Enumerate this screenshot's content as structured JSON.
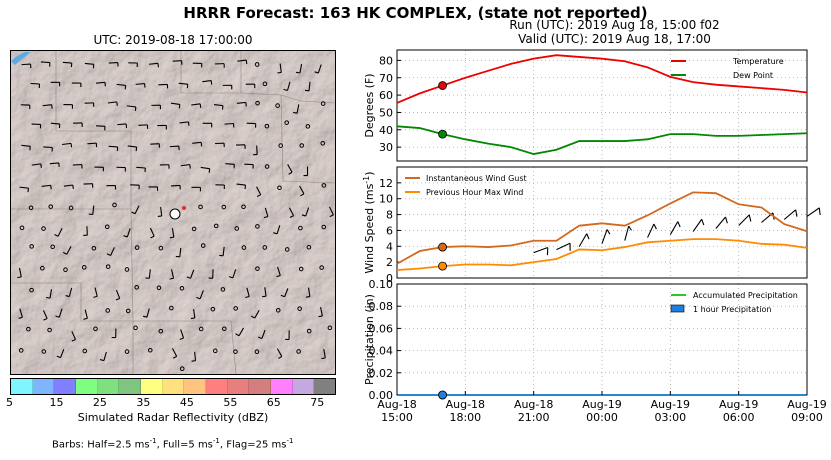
{
  "suptitle": "HRRR Forecast: 163 HK COMPLEX, (state not reported)",
  "map_panel": {
    "title": "UTC: 2019-08-18 17:00:00",
    "colorbar": {
      "label": "Simulated Radar Reflectivity (dBZ)",
      "ticks": [
        "5",
        "15",
        "25",
        "35",
        "45",
        "55",
        "65",
        "75"
      ],
      "colors": [
        "#7ff5ff",
        "#7fb5ff",
        "#7f7fff",
        "#7fff7f",
        "#7fe07f",
        "#7fc47f",
        "#ffff7f",
        "#ffe07f",
        "#ffc47f",
        "#ff7f7f",
        "#e87f7f",
        "#d47f7f",
        "#ff7fff",
        "#c4a8e0",
        "#808080"
      ]
    },
    "barbs_note_prefix": "Barbs: Half=2.5 ms",
    "barbs_note_mid1": ", Full=5 ms",
    "barbs_note_mid2": ", Flag=25 ms",
    "barbs_note_sup": "-1"
  },
  "run_title_line1": "Run (UTC): 2019 Aug 18, 15:00 f02",
  "run_title_line2": "Valid (UTC): 2019 Aug 18, 17:00",
  "chart_data": [
    {
      "type": "line",
      "panel": "temperature",
      "ylabel": "Degrees (F)",
      "ylim": [
        22,
        86
      ],
      "yticks": [
        30,
        40,
        50,
        60,
        70,
        80
      ],
      "x": [
        "2019-08-18 15:00",
        "2019-08-18 16:00",
        "2019-08-18 17:00",
        "2019-08-18 18:00",
        "2019-08-18 19:00",
        "2019-08-18 20:00",
        "2019-08-18 21:00",
        "2019-08-18 22:00",
        "2019-08-18 23:00",
        "2019-08-19 00:00",
        "2019-08-19 01:00",
        "2019-08-19 02:00",
        "2019-08-19 03:00",
        "2019-08-19 04:00",
        "2019-08-19 05:00",
        "2019-08-19 06:00",
        "2019-08-19 07:00",
        "2019-08-19 08:00",
        "2019-08-19 09:00"
      ],
      "series": [
        {
          "name": "Temperature",
          "color": "#ee0000",
          "values": [
            55.5,
            61,
            65.5,
            70,
            74,
            78,
            81,
            83,
            82,
            81,
            79.5,
            76,
            70.5,
            67.5,
            66,
            65,
            64,
            63,
            61.5
          ]
        },
        {
          "name": "Dew Point",
          "color": "#008800",
          "values": [
            42,
            41,
            37.5,
            34.5,
            32,
            30,
            26,
            28.5,
            33.5,
            33.5,
            33.5,
            34.5,
            37.5,
            37.5,
            36.5,
            36.5,
            37,
            37.5,
            38
          ]
        }
      ],
      "marker_x": "2019-08-18 17:00",
      "legend": "top-right",
      "grid": true
    },
    {
      "type": "line",
      "panel": "wind",
      "ylabel": "Wind Speed (ms",
      "ylabel_sup": "-1",
      "ylabel_close": ")",
      "ylim": [
        0,
        14
      ],
      "yticks": [
        0,
        2,
        4,
        6,
        8,
        10,
        12
      ],
      "x": [
        "2019-08-18 15:00",
        "2019-08-18 16:00",
        "2019-08-18 17:00",
        "2019-08-18 18:00",
        "2019-08-18 19:00",
        "2019-08-18 20:00",
        "2019-08-18 21:00",
        "2019-08-18 22:00",
        "2019-08-18 23:00",
        "2019-08-19 00:00",
        "2019-08-19 01:00",
        "2019-08-19 02:00",
        "2019-08-19 03:00",
        "2019-08-19 04:00",
        "2019-08-19 05:00",
        "2019-08-19 06:00",
        "2019-08-19 07:00",
        "2019-08-19 08:00",
        "2019-08-19 09:00"
      ],
      "series": [
        {
          "name": "Instantaneous Wind Gust",
          "color": "#d2691e",
          "values": [
            1.8,
            3.4,
            3.9,
            4.0,
            3.9,
            4.1,
            4.7,
            4.7,
            6.6,
            6.9,
            6.6,
            7.9,
            9.4,
            10.8,
            10.7,
            9.3,
            8.9,
            6.8,
            5.9
          ]
        },
        {
          "name": "Previous Hour Max Wind",
          "color": "#ff8c00",
          "values": [
            1.0,
            1.2,
            1.5,
            1.7,
            1.7,
            1.6,
            2.0,
            2.4,
            3.6,
            3.5,
            3.9,
            4.5,
            4.7,
            4.9,
            4.9,
            4.7,
            4.3,
            4.2,
            3.8
          ]
        }
      ],
      "barb_dirs_deg": [
        0,
        0,
        0,
        0,
        0,
        0,
        250,
        245,
        210,
        200,
        195,
        205,
        210,
        215,
        220,
        225,
        230,
        230,
        235
      ],
      "marker_x": "2019-08-18 17:00",
      "legend": "top-left",
      "grid": true
    },
    {
      "type": "line",
      "panel": "precipitation",
      "ylabel": "Precipitation (in)",
      "ylim": [
        0,
        0.1
      ],
      "yticks": [
        0.0,
        0.02,
        0.04,
        0.06,
        0.08,
        0.1
      ],
      "ytick_labels": [
        "0.00",
        "0.02",
        "0.04",
        "0.06",
        "0.08",
        "0.10"
      ],
      "x": [
        "2019-08-18 15:00",
        "2019-08-18 16:00",
        "2019-08-18 17:00",
        "2019-08-18 18:00",
        "2019-08-18 19:00",
        "2019-08-18 20:00",
        "2019-08-18 21:00",
        "2019-08-18 22:00",
        "2019-08-18 23:00",
        "2019-08-19 00:00",
        "2019-08-19 01:00",
        "2019-08-19 02:00",
        "2019-08-19 03:00",
        "2019-08-19 04:00",
        "2019-08-19 05:00",
        "2019-08-19 06:00",
        "2019-08-19 07:00",
        "2019-08-19 08:00",
        "2019-08-19 09:00"
      ],
      "series": [
        {
          "name": "Accumulated Precipitation",
          "color": "#22cc22",
          "values": [
            0,
            0,
            0,
            0,
            0,
            0,
            0,
            0,
            0,
            0,
            0,
            0,
            0,
            0,
            0,
            0,
            0,
            0,
            0
          ]
        },
        {
          "name": "1 hour Precipitation",
          "color": "#1e7fe0",
          "values": [
            0,
            0,
            0,
            0,
            0,
            0,
            0,
            0,
            0,
            0,
            0,
            0,
            0,
            0,
            0,
            0,
            0,
            0,
            0
          ]
        }
      ],
      "marker_x": "2019-08-18 17:00",
      "legend": "top-right",
      "grid": true,
      "xtick_labels": [
        [
          "Aug-18",
          "15:00"
        ],
        [
          "Aug-18",
          "18:00"
        ],
        [
          "Aug-18",
          "21:00"
        ],
        [
          "Aug-19",
          "00:00"
        ],
        [
          "Aug-19",
          "03:00"
        ],
        [
          "Aug-19",
          "06:00"
        ],
        [
          "Aug-19",
          "09:00"
        ]
      ]
    }
  ]
}
